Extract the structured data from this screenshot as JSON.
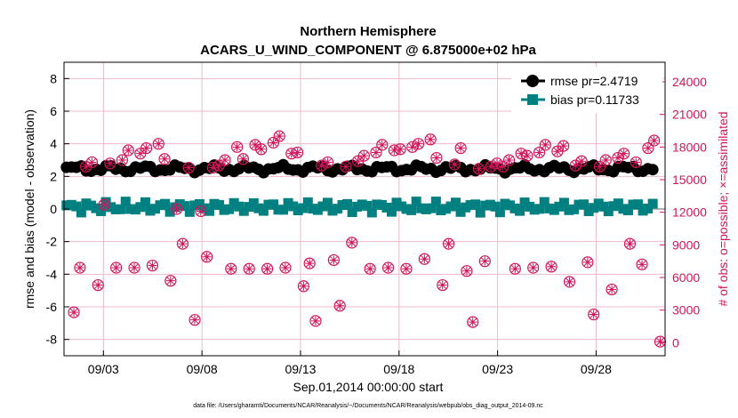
{
  "chart_data": {
    "type": "line",
    "title_line1": "Northern Hemisphere",
    "title_line2": "ACARS_U_WIND_COMPONENT @ 6.875000e+02 hPa",
    "xlabel": "Sep.01,2014 00:00:00 start",
    "ylabel_left": "rmse and bias (model - observation)",
    "ylabel_right": "# of obs: o=possible; ×=assimilated",
    "footnote": "data file: /Users/gharamti/Documents/NCAR/Reanalysis/~/Documents/NCAR/Reanalysis/webpub/obs_diag_output_2014-09.nc",
    "x_range_days": [
      0,
      30.5
    ],
    "x_ticks": [
      {
        "day": 2,
        "label": "09/03"
      },
      {
        "day": 7,
        "label": "09/08"
      },
      {
        "day": 12,
        "label": "09/13"
      },
      {
        "day": 17,
        "label": "09/18"
      },
      {
        "day": 22,
        "label": "09/23"
      },
      {
        "day": 27,
        "label": "09/28"
      }
    ],
    "y_left_range": [
      -9,
      9
    ],
    "y_left_ticks": [
      "8",
      "6",
      "4",
      "2",
      "0",
      "-2",
      "-4",
      "-6",
      "-8"
    ],
    "y_right_range": [
      -1200,
      25800
    ],
    "y_right_ticks": [
      "24000",
      "21000",
      "18000",
      "15000",
      "12000",
      "9000",
      "6000",
      "3000",
      "0"
    ],
    "grid": true,
    "legend_placement": "top-right",
    "colors": {
      "rmse": "#000000",
      "bias": "#008080",
      "obs": "#d4145a",
      "grid": "#f0b8c8",
      "zero_line": "#b0b0b0"
    },
    "series": [
      {
        "name": "rmse",
        "legend": "rmse pr=2.4719",
        "mean": 2.4719,
        "amplitude": 0.25
      },
      {
        "name": "bias",
        "legend": "bias pr=0.11733",
        "mean": 0.11733,
        "amplitude": 0.35
      }
    ],
    "obs_counts": {
      "values": [
        2800,
        6900,
        16200,
        16600,
        5300,
        12700,
        16500,
        6900,
        16800,
        17700,
        6900,
        17400,
        17900,
        7100,
        18300,
        16900,
        5700,
        12300,
        9100,
        16100,
        2100,
        12100,
        7900,
        16100,
        16300,
        16800,
        6800,
        18000,
        16900,
        6800,
        18200,
        17800,
        6800,
        18400,
        19000,
        6900,
        17400,
        17500,
        5200,
        7300,
        2000,
        16300,
        16600,
        7600,
        3400,
        16200,
        9200,
        16700,
        17200,
        6800,
        17500,
        18200,
        6900,
        17700,
        17800,
        6800,
        18000,
        18300,
        7700,
        18700,
        17000,
        5300,
        9100,
        16400,
        17900,
        6600,
        1900,
        16000,
        7500,
        16200,
        16500,
        16200,
        16800,
        6800,
        17400,
        17200,
        6900,
        17500,
        18200,
        7000,
        17600,
        18100,
        5600,
        16300,
        16700,
        7400,
        2600,
        16200,
        16800,
        4900,
        17000,
        17400,
        9100,
        16600,
        7200,
        17900,
        18600,
        100
      ]
    }
  }
}
